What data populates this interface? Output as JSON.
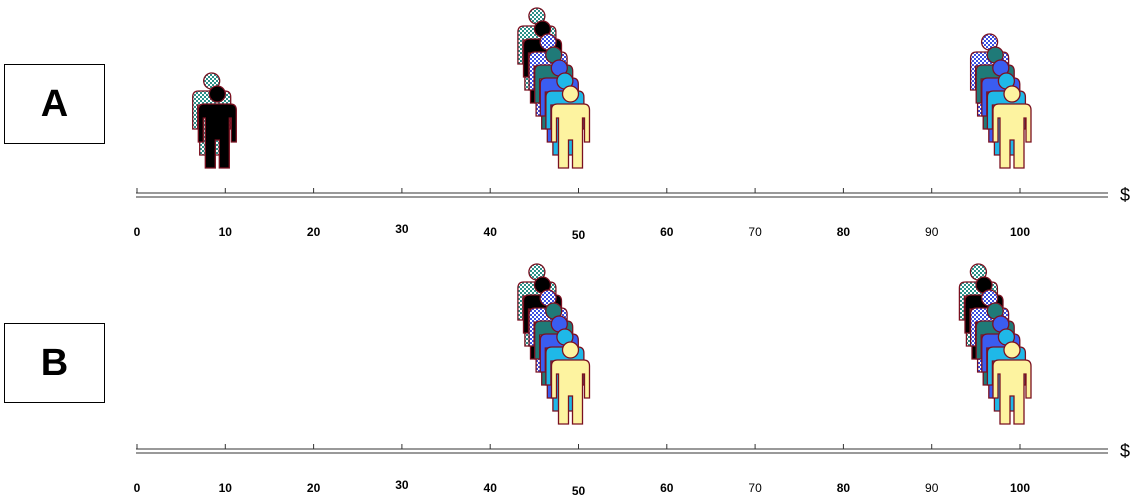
{
  "panels": [
    {
      "label": "A",
      "groups": [
        {
          "value": 10,
          "people": [
            "checker-teal",
            "black"
          ]
        },
        {
          "value": 50,
          "people": [
            "checker-teal",
            "black",
            "checker-blue",
            "teal",
            "royal-blue",
            "sky-blue",
            "yellow"
          ]
        },
        {
          "value": 100,
          "people": [
            "checker-blue",
            "teal",
            "royal-blue",
            "sky-blue",
            "yellow"
          ]
        }
      ]
    },
    {
      "label": "B",
      "groups": [
        {
          "value": 50,
          "people": [
            "checker-teal",
            "black",
            "checker-blue",
            "teal",
            "royal-blue",
            "sky-blue",
            "yellow"
          ]
        },
        {
          "value": 100,
          "people": [
            "checker-teal",
            "black",
            "checker-blue",
            "teal",
            "royal-blue",
            "sky-blue",
            "yellow"
          ]
        }
      ]
    }
  ],
  "axis": {
    "unit": "$",
    "ticks": [
      "0",
      "10",
      "20",
      "30",
      "40",
      "50",
      "60",
      "70",
      "80",
      "90",
      "100"
    ]
  },
  "colors": {
    "outline": "#7a1020",
    "black": "#000000",
    "teal": "#1f7a78",
    "royal-blue": "#3a5df0",
    "sky-blue": "#1fb8e8",
    "yellow": "#fdf3a0",
    "checker-teal": "#2a8f88",
    "checker-blue": "#3a4fe0"
  }
}
